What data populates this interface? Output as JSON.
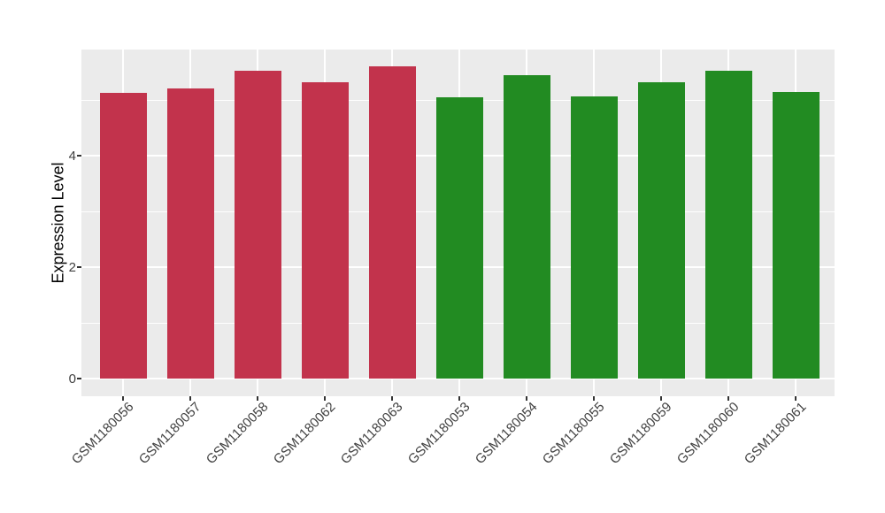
{
  "style": {
    "figure_background": "#FFFFFF",
    "panel_background": "#EBEBEB",
    "grid_color": "#FFFFFF",
    "tick_mark_color": "#333333",
    "tick_label_color": "#404040",
    "axis_title_color": "#000000"
  },
  "chart_data": {
    "type": "bar",
    "title": "",
    "xlabel": "",
    "ylabel": "Expression Level",
    "categories": [
      "GSM1180056",
      "GSM1180057",
      "GSM1180058",
      "GSM1180062",
      "GSM1180063",
      "GSM1180053",
      "GSM1180054",
      "GSM1180055",
      "GSM1180059",
      "GSM1180060",
      "GSM1180061"
    ],
    "values": [
      5.13,
      5.21,
      5.53,
      5.31,
      5.61,
      5.04,
      5.44,
      5.07,
      5.32,
      5.52,
      5.15
    ],
    "bar_colors": [
      "#C2334C",
      "#C2334C",
      "#C2334C",
      "#C2334C",
      "#C2334C",
      "#228B22",
      "#228B22",
      "#228B22",
      "#228B22",
      "#228B22",
      "#228B22"
    ],
    "yticks": [
      0,
      2,
      4
    ],
    "ytick_labels": [
      "0",
      "2",
      "4"
    ],
    "minor_yticks": [
      1,
      3,
      5
    ],
    "ylim": [
      -0.32,
      5.9
    ],
    "x_label_rotation_deg": 45,
    "grid": "white major and minor horizontal gridlines plus vertical gridlines at each category, on gray panel",
    "legend_position": "none"
  }
}
